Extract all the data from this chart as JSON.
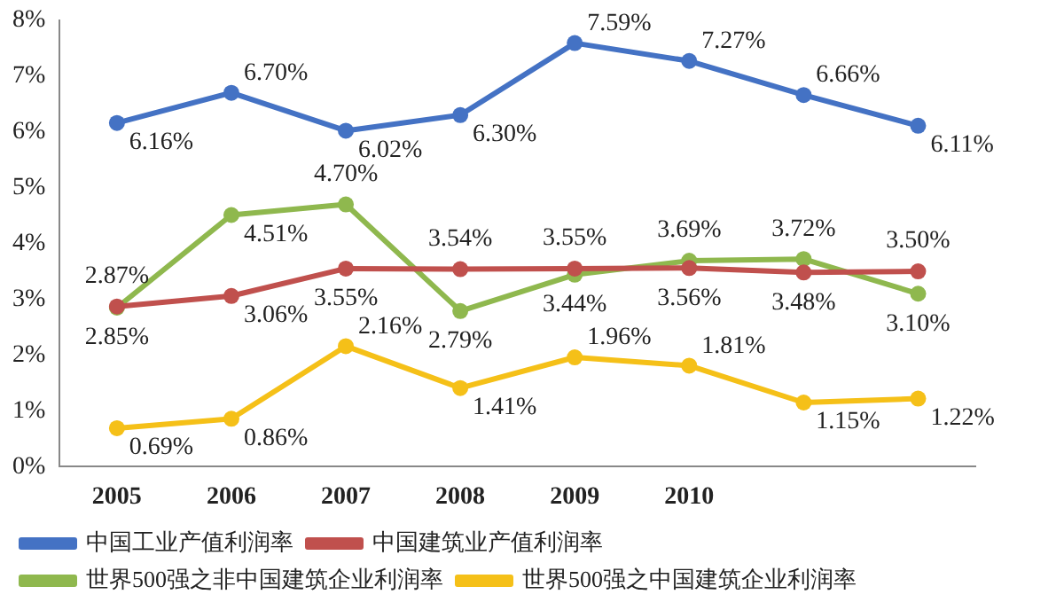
{
  "chart_data": {
    "type": "line",
    "categories": [
      "2005",
      "2006",
      "2007",
      "2008",
      "2009",
      "2010",
      null,
      null
    ],
    "ylim": [
      0,
      8
    ],
    "yticks": [
      {
        "value": 0,
        "label": "0%"
      },
      {
        "value": 1,
        "label": "1%"
      },
      {
        "value": 2,
        "label": "2%"
      },
      {
        "value": 3,
        "label": "3%"
      },
      {
        "value": 4,
        "label": "4%"
      },
      {
        "value": 5,
        "label": "5%"
      },
      {
        "value": 6,
        "label": "6%"
      },
      {
        "value": 7,
        "label": "7%"
      },
      {
        "value": 8,
        "label": "8%"
      }
    ],
    "grid": false,
    "legend": "bottom",
    "marker": "circle",
    "series": [
      {
        "name": "中国工业产值利润率",
        "color": "#4472c4",
        "values": [
          6.16,
          6.7,
          6.02,
          6.3,
          7.59,
          7.27,
          6.66,
          6.11
        ],
        "value_labels": [
          "6.16%",
          "6.70%",
          "6.02%",
          "6.30%",
          "7.59%",
          "7.27%",
          "6.66%",
          "6.11%"
        ]
      },
      {
        "name": "中国建筑业产值利润率",
        "color": "#c0504d",
        "values": [
          2.87,
          3.06,
          3.55,
          3.54,
          3.55,
          3.56,
          3.48,
          3.5
        ],
        "value_labels": [
          "2.87%",
          "3.06%",
          "3.55%",
          "3.54%",
          "3.55%",
          "3.56%",
          "3.48%",
          "3.50%"
        ]
      },
      {
        "name": "世界500强之非中国建筑企业利润率",
        "color": "#8fb84e",
        "values": [
          2.85,
          4.51,
          4.7,
          2.79,
          3.44,
          3.69,
          3.72,
          3.1
        ],
        "value_labels": [
          "2.85%",
          "4.51%",
          "4.70%",
          "2.79%",
          "3.44%",
          "3.69%",
          "3.72%",
          "3.10%"
        ]
      },
      {
        "name": "世界500强之中国建筑企业利润率",
        "color": "#f5c018",
        "values": [
          0.69,
          0.86,
          2.16,
          1.41,
          1.96,
          1.81,
          1.15,
          1.22
        ],
        "value_labels": [
          "0.69%",
          "0.86%",
          "2.16%",
          "1.41%",
          "1.96%",
          "1.81%",
          "1.15%",
          "1.22%"
        ]
      }
    ]
  }
}
